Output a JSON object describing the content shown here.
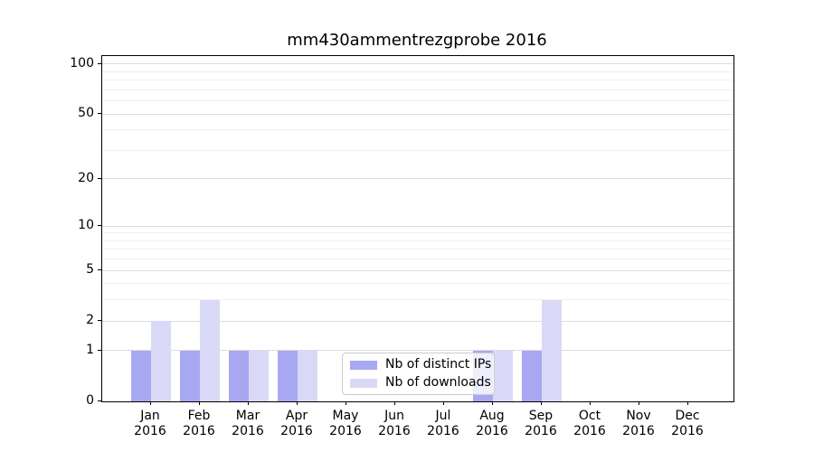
{
  "figure": {
    "title": "mm430ammentrezgprobe 2016",
    "background": "#ffffff"
  },
  "chart_data": {
    "type": "bar",
    "title": "mm430ammentrezgprobe 2016",
    "categories": [
      "Jan",
      "Feb",
      "Mar",
      "Apr",
      "May",
      "Jun",
      "Jul",
      "Aug",
      "Sep",
      "Oct",
      "Nov",
      "Dec"
    ],
    "category_year": "2016",
    "series": [
      {
        "name": "Nb of distinct IPs",
        "color": "#a8a8f2",
        "values": [
          1,
          1,
          1,
          1,
          0,
          0,
          0,
          1,
          1,
          0,
          0,
          0
        ]
      },
      {
        "name": "Nb of downloads",
        "color": "#d9d9f7",
        "values": [
          2,
          3,
          1,
          1,
          0,
          0,
          0,
          1,
          3,
          0,
          0,
          0
        ]
      }
    ],
    "xlabel": "",
    "ylabel": "",
    "yscale": "log1p",
    "ylim": [
      0,
      112
    ],
    "y_major_ticks": [
      0,
      1,
      2,
      5,
      10,
      20,
      50,
      100
    ],
    "y_minor_gridlines": [
      3,
      4,
      6,
      7,
      8,
      9,
      30,
      40,
      60,
      70,
      80,
      90
    ],
    "grid": "horizontal",
    "legend": {
      "location": "inside-bottom-center",
      "entries": [
        "Nb of distinct IPs",
        "Nb of downloads"
      ]
    },
    "colors": {
      "grid_major": "#dcdcdc",
      "grid_minor": "#efefef",
      "axis": "#000000",
      "legend_border": "#cccccc"
    }
  }
}
